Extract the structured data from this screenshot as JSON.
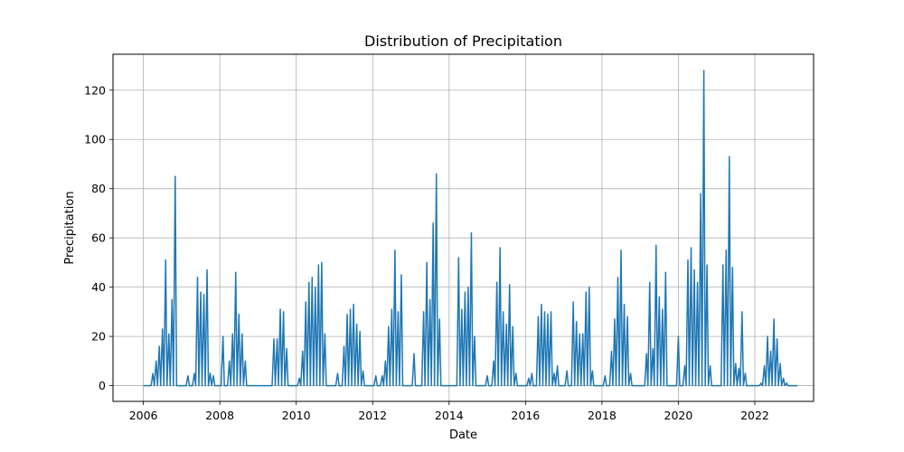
{
  "chart_data": {
    "type": "line",
    "title": "Distribution of Precipitation",
    "xlabel": "Date",
    "ylabel": "Precipitation",
    "grid": true,
    "line_color": "#1f77b4",
    "xlim": [
      "2005-03-15",
      "2023-07-15"
    ],
    "ylim": [
      -6.4,
      134.6
    ],
    "xticks": [
      "2006",
      "2008",
      "2010",
      "2012",
      "2014",
      "2016",
      "2018",
      "2020",
      "2022"
    ],
    "yticks": [
      "0",
      "20",
      "40",
      "60",
      "80",
      "100",
      "120"
    ],
    "x": [
      "2006-01",
      "2006-02",
      "2006-03",
      "2006-04",
      "2006-05",
      "2006-06",
      "2006-07",
      "2006-08",
      "2006-09",
      "2006-10",
      "2006-11",
      "2006-12",
      "2007-01",
      "2007-02",
      "2007-03",
      "2007-04",
      "2007-05",
      "2007-06",
      "2007-07",
      "2007-08",
      "2007-09",
      "2007-10",
      "2007-11",
      "2007-12",
      "2008-01",
      "2008-02",
      "2008-03",
      "2008-04",
      "2008-05",
      "2008-06",
      "2008-07",
      "2008-08",
      "2008-09",
      "2008-10",
      "2008-11",
      "2008-12",
      "2009-01",
      "2009-02",
      "2009-03",
      "2009-04",
      "2009-05",
      "2009-06",
      "2009-07",
      "2009-08",
      "2009-09",
      "2009-10",
      "2009-11",
      "2009-12",
      "2010-01",
      "2010-02",
      "2010-03",
      "2010-04",
      "2010-05",
      "2010-06",
      "2010-07",
      "2010-08",
      "2010-09",
      "2010-10",
      "2010-11",
      "2010-12",
      "2011-01",
      "2011-02",
      "2011-03",
      "2011-04",
      "2011-05",
      "2011-06",
      "2011-07",
      "2011-08",
      "2011-09",
      "2011-10",
      "2011-11",
      "2011-12",
      "2012-01",
      "2012-02",
      "2012-03",
      "2012-04",
      "2012-05",
      "2012-06",
      "2012-07",
      "2012-08",
      "2012-09",
      "2012-10",
      "2012-11",
      "2012-12",
      "2013-01",
      "2013-02",
      "2013-03",
      "2013-04",
      "2013-05",
      "2013-06",
      "2013-07",
      "2013-08",
      "2013-09",
      "2013-10",
      "2013-11",
      "2013-12",
      "2014-01",
      "2014-02",
      "2014-03",
      "2014-04",
      "2014-05",
      "2014-06",
      "2014-07",
      "2014-08",
      "2014-09",
      "2014-10",
      "2014-11",
      "2014-12",
      "2015-01",
      "2015-02",
      "2015-03",
      "2015-04",
      "2015-05",
      "2015-06",
      "2015-07",
      "2015-08",
      "2015-09",
      "2015-10",
      "2015-11",
      "2015-12",
      "2016-01",
      "2016-02",
      "2016-03",
      "2016-04",
      "2016-05",
      "2016-06",
      "2016-07",
      "2016-08",
      "2016-09",
      "2016-10",
      "2016-11",
      "2016-12",
      "2017-01",
      "2017-02",
      "2017-03",
      "2017-04",
      "2017-05",
      "2017-06",
      "2017-07",
      "2017-08",
      "2017-09",
      "2017-10",
      "2017-11",
      "2017-12",
      "2018-01",
      "2018-02",
      "2018-03",
      "2018-04",
      "2018-05",
      "2018-06",
      "2018-07",
      "2018-08",
      "2018-09",
      "2018-10",
      "2018-11",
      "2018-12",
      "2019-01",
      "2019-02",
      "2019-03",
      "2019-04",
      "2019-05",
      "2019-06",
      "2019-07",
      "2019-08",
      "2019-09",
      "2019-10",
      "2019-11",
      "2019-12",
      "2020-01",
      "2020-02",
      "2020-03",
      "2020-04",
      "2020-05",
      "2020-06",
      "2020-07",
      "2020-08",
      "2020-09",
      "2020-10",
      "2020-11",
      "2020-12",
      "2021-01",
      "2021-02",
      "2021-03",
      "2021-04",
      "2021-05",
      "2021-06",
      "2021-07",
      "2021-08",
      "2021-09",
      "2021-10",
      "2021-11",
      "2021-12",
      "2022-01",
      "2022-02",
      "2022-03",
      "2022-04",
      "2022-05",
      "2022-06",
      "2022-07",
      "2022-08",
      "2022-09",
      "2022-10",
      "2022-11",
      "2022-12",
      "2023-01",
      "2023-02"
    ],
    "values": [
      0,
      0,
      0,
      5,
      10,
      16,
      23,
      51,
      21,
      35,
      85,
      0,
      0,
      0,
      4,
      0,
      5,
      44,
      38,
      37,
      47,
      5,
      4,
      0,
      0,
      20,
      0,
      10,
      21,
      46,
      29,
      21,
      10,
      0,
      0,
      0,
      0,
      0,
      0,
      0,
      0,
      19,
      19,
      31,
      30,
      15,
      0,
      0,
      0,
      3,
      14,
      34,
      42,
      44,
      40,
      49,
      50,
      21,
      0,
      0,
      0,
      5,
      0,
      16,
      29,
      31,
      33,
      25,
      22,
      6,
      0,
      0,
      0,
      4,
      0,
      4,
      10,
      24,
      31,
      55,
      30,
      45,
      0,
      0,
      0,
      13,
      0,
      0,
      30,
      50,
      35,
      66,
      86,
      27,
      0,
      0,
      0,
      0,
      0,
      52,
      31,
      38,
      40,
      62,
      20,
      0,
      0,
      0,
      4,
      0,
      10,
      42,
      56,
      30,
      25,
      41,
      24,
      5,
      0,
      0,
      0,
      3,
      5,
      0,
      28,
      33,
      30,
      29,
      30,
      5,
      8,
      0,
      0,
      6,
      0,
      34,
      26,
      21,
      21,
      38,
      40,
      6,
      0,
      0,
      0,
      4,
      0,
      14,
      27,
      44,
      55,
      33,
      28,
      5,
      0,
      0,
      0,
      0,
      13,
      42,
      15,
      57,
      36,
      31,
      46,
      0,
      0,
      0,
      20,
      0,
      8,
      51,
      56,
      47,
      42,
      78,
      128,
      49,
      8,
      0,
      0,
      0,
      49,
      55,
      93,
      48,
      9,
      7,
      30,
      5,
      0,
      0,
      0,
      0,
      1,
      8,
      20,
      14,
      27,
      19,
      9,
      3,
      1,
      0,
      0,
      0
    ]
  }
}
